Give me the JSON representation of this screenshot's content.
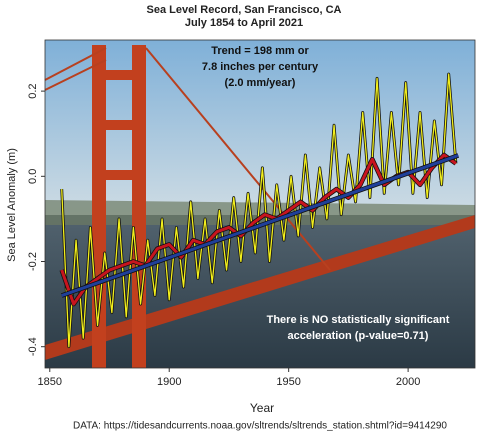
{
  "chart_data": {
    "type": "line",
    "title": "Sea Level Record, San Francisco, CA",
    "subtitle": "July 1854 to April 2021",
    "x_label": "Year",
    "y_label": "Sea Level Anomaly (m)",
    "annotations": [
      "Trend = 198 mm or",
      "7.8 inches per century",
      "(2.0 mm/year)",
      "There is NO statistically significant",
      "acceleration (p-value=0.71)"
    ],
    "source": "DATA: https://tidesandcurrents.noaa.gov/sltrends/sltrends_station.shtml?id=9414290",
    "xlim": [
      1848,
      2028
    ],
    "xticks": [
      1850,
      1900,
      1950,
      2000
    ],
    "ylim": [
      -0.45,
      0.32
    ],
    "yticks": [
      -0.4,
      -0.2,
      {
        "value": 0,
        "label": "0.0"
      },
      0.2
    ],
    "series": [
      {
        "color": "#f2ef1c",
        "x": [
          1855,
          1858,
          1861,
          1864,
          1867,
          1870,
          1873,
          1876,
          1879,
          1882,
          1885,
          1888,
          1891,
          1894,
          1897,
          1900,
          1903,
          1906,
          1909,
          1912,
          1915,
          1918,
          1921,
          1924,
          1927,
          1930,
          1933,
          1936,
          1939,
          1942,
          1945,
          1948,
          1951,
          1954,
          1957,
          1960,
          1963,
          1966,
          1969,
          1972,
          1975,
          1978,
          1981,
          1984,
          1987,
          1990,
          1993,
          1996,
          1999,
          2002,
          2005,
          2008,
          2011,
          2014,
          2017,
          2020
        ],
        "values": [
          -0.03,
          -0.4,
          -0.15,
          -0.38,
          -0.12,
          -0.35,
          -0.18,
          -0.32,
          -0.1,
          -0.33,
          -0.12,
          -0.3,
          -0.15,
          -0.28,
          -0.1,
          -0.29,
          -0.12,
          -0.26,
          -0.06,
          -0.24,
          -0.1,
          -0.25,
          -0.08,
          -0.22,
          -0.05,
          -0.2,
          -0.04,
          -0.18,
          0.02,
          -0.2,
          -0.02,
          -0.15,
          0.0,
          -0.14,
          0.05,
          -0.12,
          0.02,
          -0.1,
          0.12,
          -0.09,
          0.05,
          -0.06,
          0.15,
          -0.05,
          0.23,
          -0.04,
          0.15,
          -0.02,
          0.22,
          -0.04,
          0.15,
          -0.05,
          0.13,
          -0.02,
          0.24,
          0.03
        ]
      },
      {
        "color": "#c8141e",
        "x": [
          1855,
          1860,
          1865,
          1870,
          1875,
          1880,
          1885,
          1890,
          1895,
          1900,
          1905,
          1910,
          1915,
          1920,
          1925,
          1930,
          1935,
          1940,
          1945,
          1950,
          1955,
          1960,
          1965,
          1970,
          1975,
          1980,
          1985,
          1990,
          1995,
          2000,
          2005,
          2010,
          2015,
          2020
        ],
        "values": [
          -0.22,
          -0.3,
          -0.26,
          -0.24,
          -0.22,
          -0.21,
          -0.2,
          -0.21,
          -0.17,
          -0.16,
          -0.19,
          -0.15,
          -0.16,
          -0.13,
          -0.12,
          -0.14,
          -0.11,
          -0.09,
          -0.1,
          -0.08,
          -0.06,
          -0.08,
          -0.05,
          -0.03,
          -0.05,
          -0.02,
          0.04,
          -0.02,
          0.0,
          0.01,
          -0.02,
          0.02,
          0.05,
          0.03
        ]
      },
      {
        "color": "#1f3f9a",
        "x": [
          1855,
          2021
        ],
        "values": [
          -0.28,
          0.049
        ]
      }
    ]
  }
}
